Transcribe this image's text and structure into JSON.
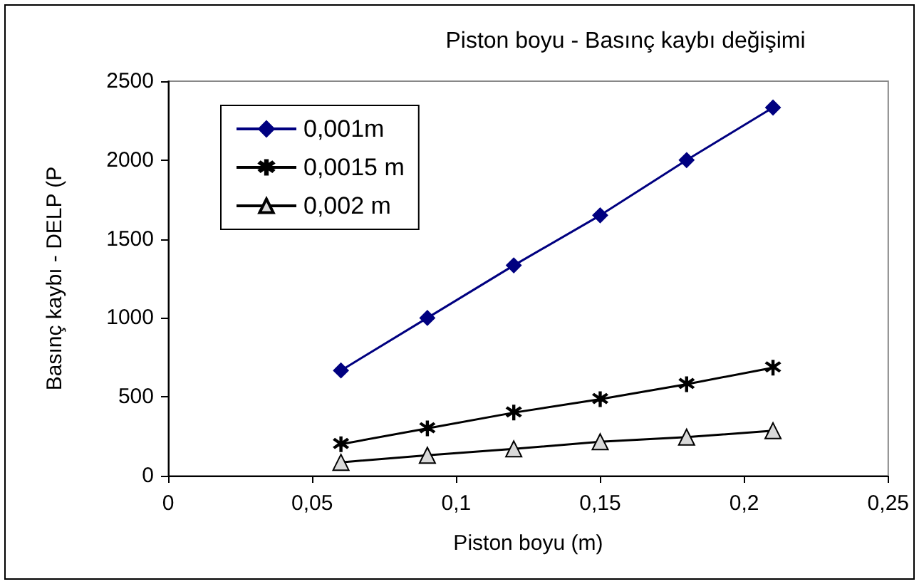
{
  "chart_data": {
    "type": "line",
    "title": "Piston boyu - Basınç kaybı değişimi",
    "xlabel": "Piston boyu (m)",
    "ylabel": "Basınç kaybı - DELP (P",
    "x": [
      0.06,
      0.09,
      0.12,
      0.15,
      0.18,
      0.21
    ],
    "series": [
      {
        "name": "0,001m",
        "color": "#000080",
        "marker": "diamond",
        "values": [
          667,
          1000,
          1333,
          1650,
          2000,
          2333
        ]
      },
      {
        "name": "0,0015 m",
        "color": "#000000",
        "marker": "cross",
        "values": [
          200,
          300,
          400,
          485,
          580,
          685
        ]
      },
      {
        "name": "0,002 m",
        "color": "#000000",
        "marker": "triangle",
        "values": [
          85,
          130,
          170,
          215,
          245,
          285
        ]
      }
    ],
    "xlim": [
      0,
      0.25
    ],
    "xticks": [
      0,
      {
        "value": 0.05,
        "label": "0,05"
      },
      {
        "value": 0.1,
        "label": "0,1"
      },
      {
        "value": 0.15,
        "label": "0,15"
      },
      {
        "value": 0.2,
        "label": "0,2"
      },
      {
        "value": 0.25,
        "label": "0,25"
      }
    ],
    "ylim": [
      0,
      2500
    ],
    "yticks": [
      0,
      500,
      1000,
      1500,
      2000,
      2500
    ],
    "grid": false,
    "legend": "top left",
    "line_style": "solid"
  }
}
